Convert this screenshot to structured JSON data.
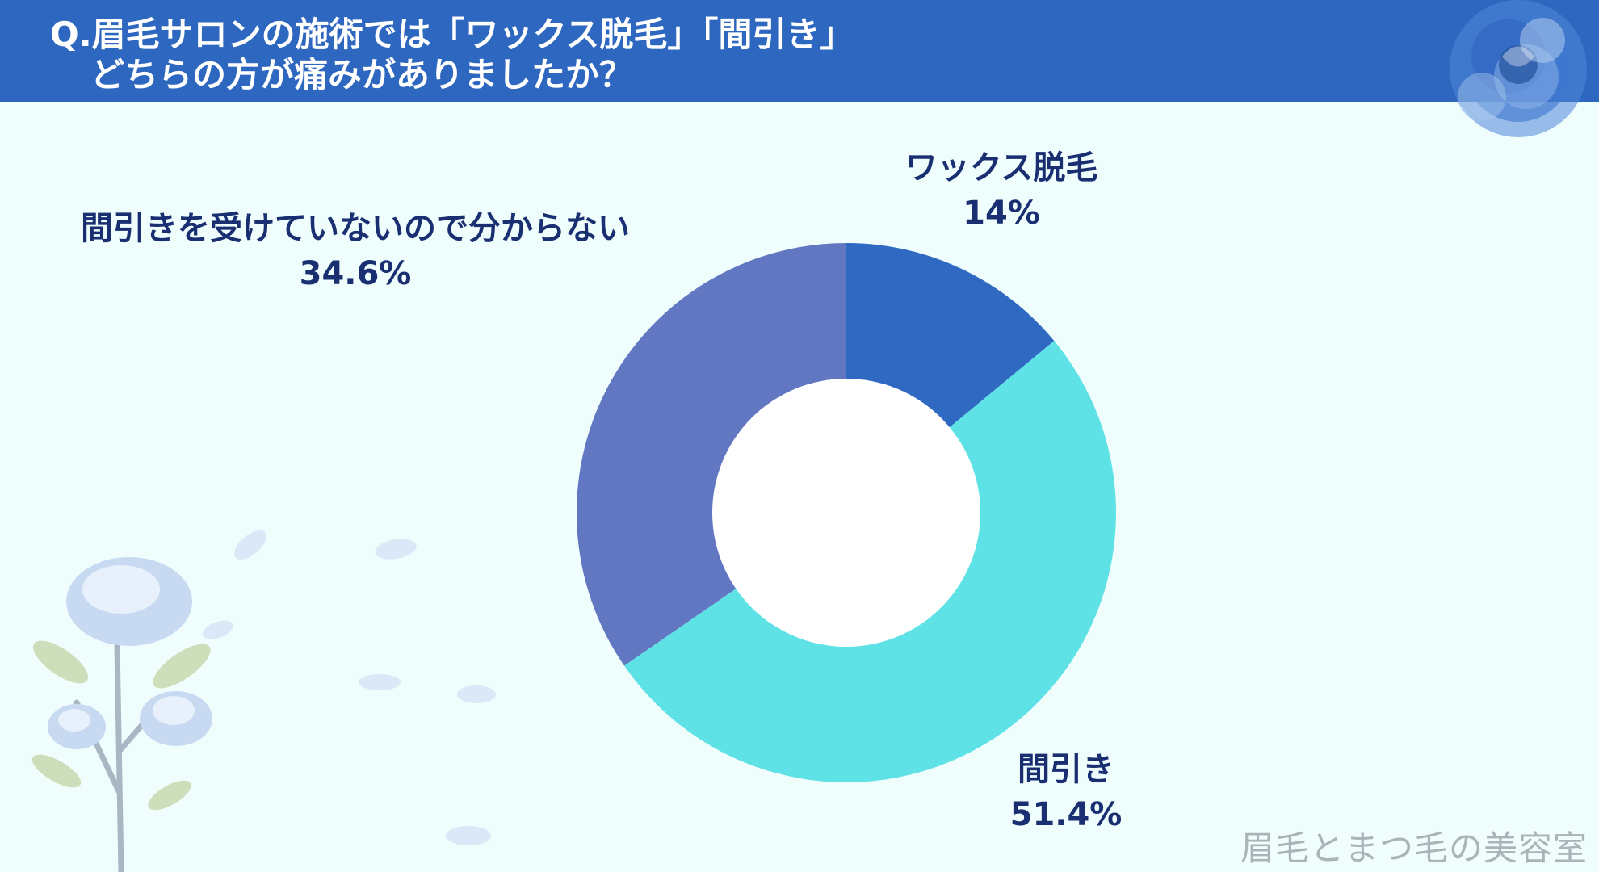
{
  "header": {
    "title_line1": "Q.眉毛サロンの施術では「ワックス脱毛」「間引き」",
    "title_line2": "どちらの方が痛みがありましたか？"
  },
  "chart_data": {
    "type": "donut",
    "title": "Q.眉毛サロンの施術では「ワックス脱毛」「間引き」どちらの方が痛みがありましたか？",
    "categories": [
      "ワックス脱毛",
      "間引き",
      "間引きを受けていないので分からない"
    ],
    "values": [
      14,
      51.4,
      34.6
    ],
    "value_labels": [
      "14%",
      "51.4%",
      "34.6%"
    ],
    "colors": [
      "#2f69c2",
      "#5fe2e6",
      "#6277c1"
    ],
    "unit": "%"
  },
  "colors": {
    "header_bg": "#2e67bf",
    "background": "#effdfd",
    "label_text": "#1a2f72"
  },
  "watermark": "眉毛とまつ毛の美容室"
}
